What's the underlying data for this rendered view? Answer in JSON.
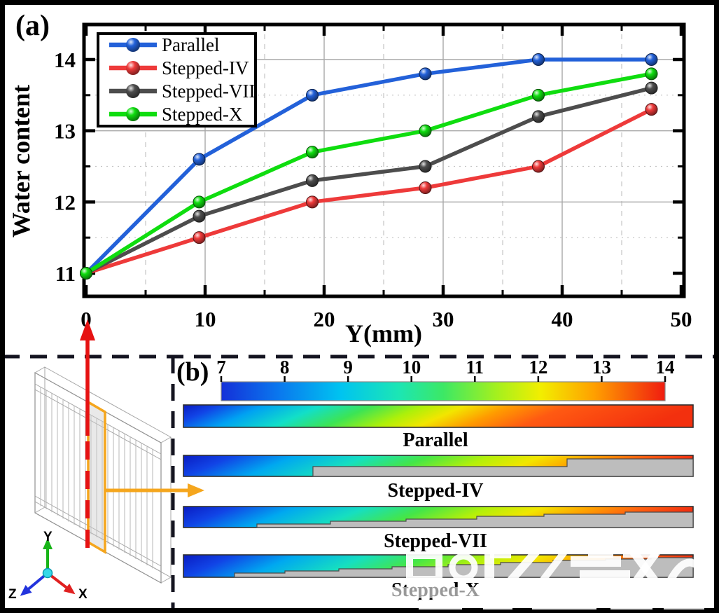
{
  "panels": {
    "a_label": "(a)",
    "b_label": "(b)"
  },
  "chart_data": {
    "type": "line",
    "title": "",
    "xlabel": "Y(mm)",
    "ylabel": "Water content",
    "x": [
      0,
      9.5,
      19,
      28.5,
      38,
      47.5
    ],
    "series": [
      {
        "name": "Parallel",
        "color": "#2361d9",
        "values": [
          11,
          12.6,
          13.5,
          13.8,
          14.0,
          14.0
        ]
      },
      {
        "name": "Stepped-IV",
        "color": "#ee3a3a",
        "values": [
          11,
          11.5,
          12.0,
          12.2,
          12.5,
          13.3
        ]
      },
      {
        "name": "Stepped-VII",
        "color": "#4d4d4d",
        "values": [
          11,
          11.8,
          12.3,
          12.5,
          13.2,
          13.6
        ]
      },
      {
        "name": "Stepped-X",
        "color": "#0fdd0f",
        "values": [
          11,
          12.0,
          12.7,
          13.0,
          13.5,
          13.8
        ]
      }
    ],
    "xticks": [
      0,
      10,
      20,
      30,
      40,
      50
    ],
    "yticks": [
      11,
      12,
      13,
      14
    ],
    "xlim": [
      -0.2,
      50.3
    ],
    "ylim": [
      10.67,
      14.33
    ],
    "grid": true,
    "legend_position": "top-left"
  },
  "colorbar": {
    "ticks": [
      "7",
      "8",
      "9",
      "10",
      "11",
      "12",
      "13",
      "14"
    ],
    "colormap": [
      "#1430d8",
      "#0a78ee",
      "#00c4f0",
      "#1ce6b4",
      "#3ce865",
      "#a4f01e",
      "#f2ee00",
      "#ffa000",
      "#f01c10"
    ]
  },
  "contour_labels": [
    "Parallel",
    "Stepped-IV",
    "Stepped-VII",
    "Stepped-X"
  ],
  "triad": {
    "x_label": "X",
    "y_label": "Y",
    "z_label": "Z",
    "x_color": "#e02020",
    "y_color": "#18b418",
    "z_color": "#2233dd"
  },
  "annotation_colors": {
    "red_arrow": "#e61212",
    "orange_arrow": "#f5a61d"
  }
}
